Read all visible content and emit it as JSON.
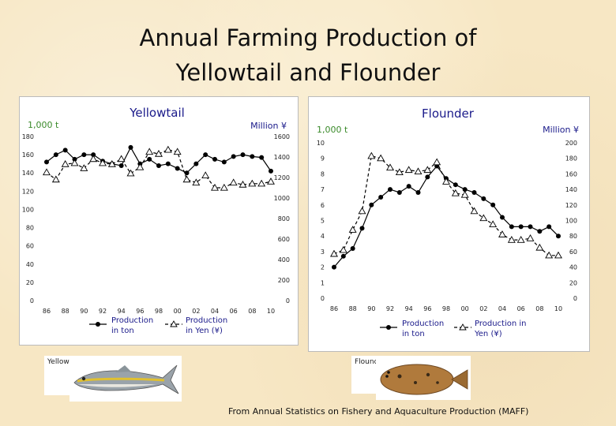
{
  "title": {
    "line1": "Annual Farming Production of",
    "line2": "Yellowtail and Flounder"
  },
  "source": "From Annual Statistics on Fishery and Aquaculture Production (MAFF)",
  "captions": {
    "yellowtail": "Yellowtail",
    "flounder": "Flounder"
  },
  "colors": {
    "title": "#111111",
    "panel_title": "#1a1a8a",
    "unit": "#1a1a8a",
    "green_unit": "#3a8a2a",
    "legend": "#1a1a8a",
    "series": "#000000"
  },
  "chart_data": [
    {
      "type": "line",
      "title": "Yellowtail",
      "ylabel": "1,000 t",
      "y2label": "Million ¥",
      "ylim": [
        0,
        180
      ],
      "y2lim": [
        0,
        1600
      ],
      "yticks": [
        "0",
        "20",
        "40",
        "60",
        "80",
        "100",
        "120",
        "140",
        "160",
        "180"
      ],
      "y2ticks": [
        "0",
        "200",
        "400",
        "600",
        "800",
        "1000",
        "1200",
        "1400",
        "1600"
      ],
      "xticks": [
        "86",
        "88",
        "90",
        "92",
        "94",
        "96",
        "98",
        "00",
        "02",
        "04",
        "06",
        "08",
        "10"
      ],
      "x": [
        1986,
        1987,
        1988,
        1989,
        1990,
        1991,
        1992,
        1993,
        1994,
        1995,
        1996,
        1997,
        1998,
        1999,
        2000,
        2001,
        2002,
        2003,
        2004,
        2005,
        2006,
        2007,
        2008,
        2009,
        2010
      ],
      "series": [
        {
          "name": "Production in ton",
          "axis": "left",
          "marker": "circle",
          "values": [
            152,
            160,
            165,
            155,
            160,
            160,
            153,
            150,
            148,
            168,
            150,
            155,
            148,
            150,
            145,
            140,
            150,
            160,
            155,
            152,
            158,
            160,
            158,
            157,
            142
          ]
        },
        {
          "name": "Production in Yen (¥)",
          "axis": "right",
          "marker": "triangle",
          "values": [
            1250,
            1180,
            1330,
            1340,
            1290,
            1380,
            1340,
            1330,
            1380,
            1240,
            1300,
            1450,
            1430,
            1470,
            1450,
            1180,
            1150,
            1220,
            1100,
            1100,
            1150,
            1130,
            1140,
            1140,
            1160
          ]
        }
      ],
      "legend": [
        "Production in ton",
        "Production in Yen (¥)"
      ]
    },
    {
      "type": "line",
      "title": "Flounder",
      "ylabel": "1,000 t",
      "y2label": "Million ¥",
      "ylim": [
        0,
        10
      ],
      "y2lim": [
        0,
        200
      ],
      "yticks": [
        "0",
        "1",
        "2",
        "3",
        "4",
        "5",
        "6",
        "7",
        "8",
        "9",
        "10"
      ],
      "y2ticks": [
        "0",
        "20",
        "40",
        "60",
        "80",
        "100",
        "120",
        "140",
        "160",
        "180",
        "200"
      ],
      "xticks": [
        "86",
        "88",
        "90",
        "92",
        "94",
        "96",
        "98",
        "00",
        "02",
        "04",
        "06",
        "08",
        "10"
      ],
      "x": [
        1986,
        1987,
        1988,
        1989,
        1990,
        1991,
        1992,
        1993,
        1994,
        1995,
        1996,
        1997,
        1998,
        1999,
        2000,
        2001,
        2002,
        2003,
        2004,
        2005,
        2006,
        2007,
        2008,
        2009,
        2010
      ],
      "series": [
        {
          "name": "Production in ton",
          "axis": "left",
          "marker": "circle",
          "values": [
            2.0,
            2.7,
            3.2,
            4.5,
            6.0,
            6.5,
            7.0,
            6.8,
            7.2,
            6.8,
            7.8,
            8.5,
            7.7,
            7.3,
            7.0,
            6.8,
            6.4,
            6.0,
            5.2,
            4.6,
            4.6,
            4.6,
            4.3,
            4.6,
            4.0
          ]
        },
        {
          "name": "Production in Yen (¥)",
          "axis": "right",
          "marker": "triangle",
          "values": [
            57,
            62,
            88,
            112,
            183,
            180,
            168,
            162,
            165,
            163,
            165,
            175,
            150,
            135,
            133,
            112,
            103,
            95,
            82,
            75,
            75,
            77,
            65,
            55,
            55
          ]
        }
      ],
      "legend": [
        "Production in ton",
        "Production in Yen (¥)"
      ]
    }
  ]
}
